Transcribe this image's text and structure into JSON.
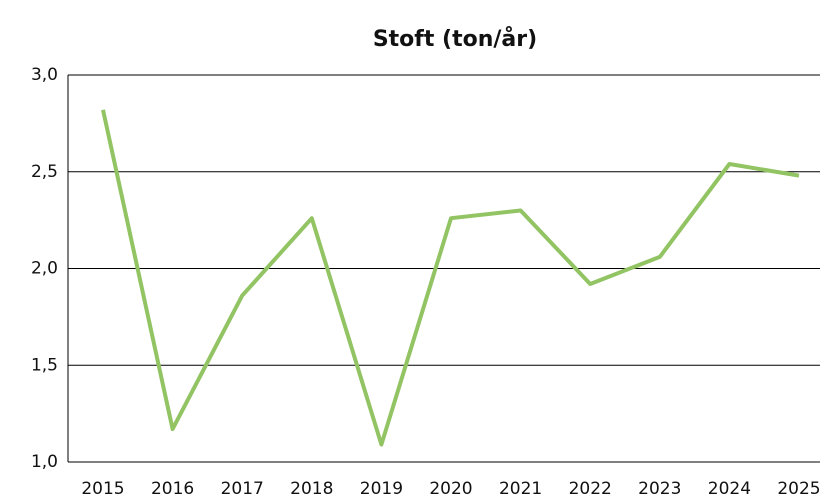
{
  "chart_data": {
    "type": "line",
    "title": "Stoft (ton/år)",
    "categories": [
      "2015",
      "2016",
      "2017",
      "2018",
      "2019",
      "2020",
      "2021",
      "2022",
      "2023",
      "2024",
      "2025"
    ],
    "series": [
      {
        "name": "Stoft",
        "color": "#92c464",
        "values": [
          2.82,
          1.17,
          1.86,
          2.26,
          1.09,
          2.26,
          2.3,
          1.92,
          2.06,
          2.54,
          2.48
        ]
      }
    ],
    "ylim": [
      1,
      3
    ],
    "yticks": [
      {
        "value": 1,
        "label": "1,0"
      },
      {
        "value": 1.5,
        "label": "1,5"
      },
      {
        "value": 2,
        "label": "2,0"
      },
      {
        "value": 2.5,
        "label": "2,5"
      },
      {
        "value": 3,
        "label": "3,0"
      }
    ],
    "grid": true
  }
}
